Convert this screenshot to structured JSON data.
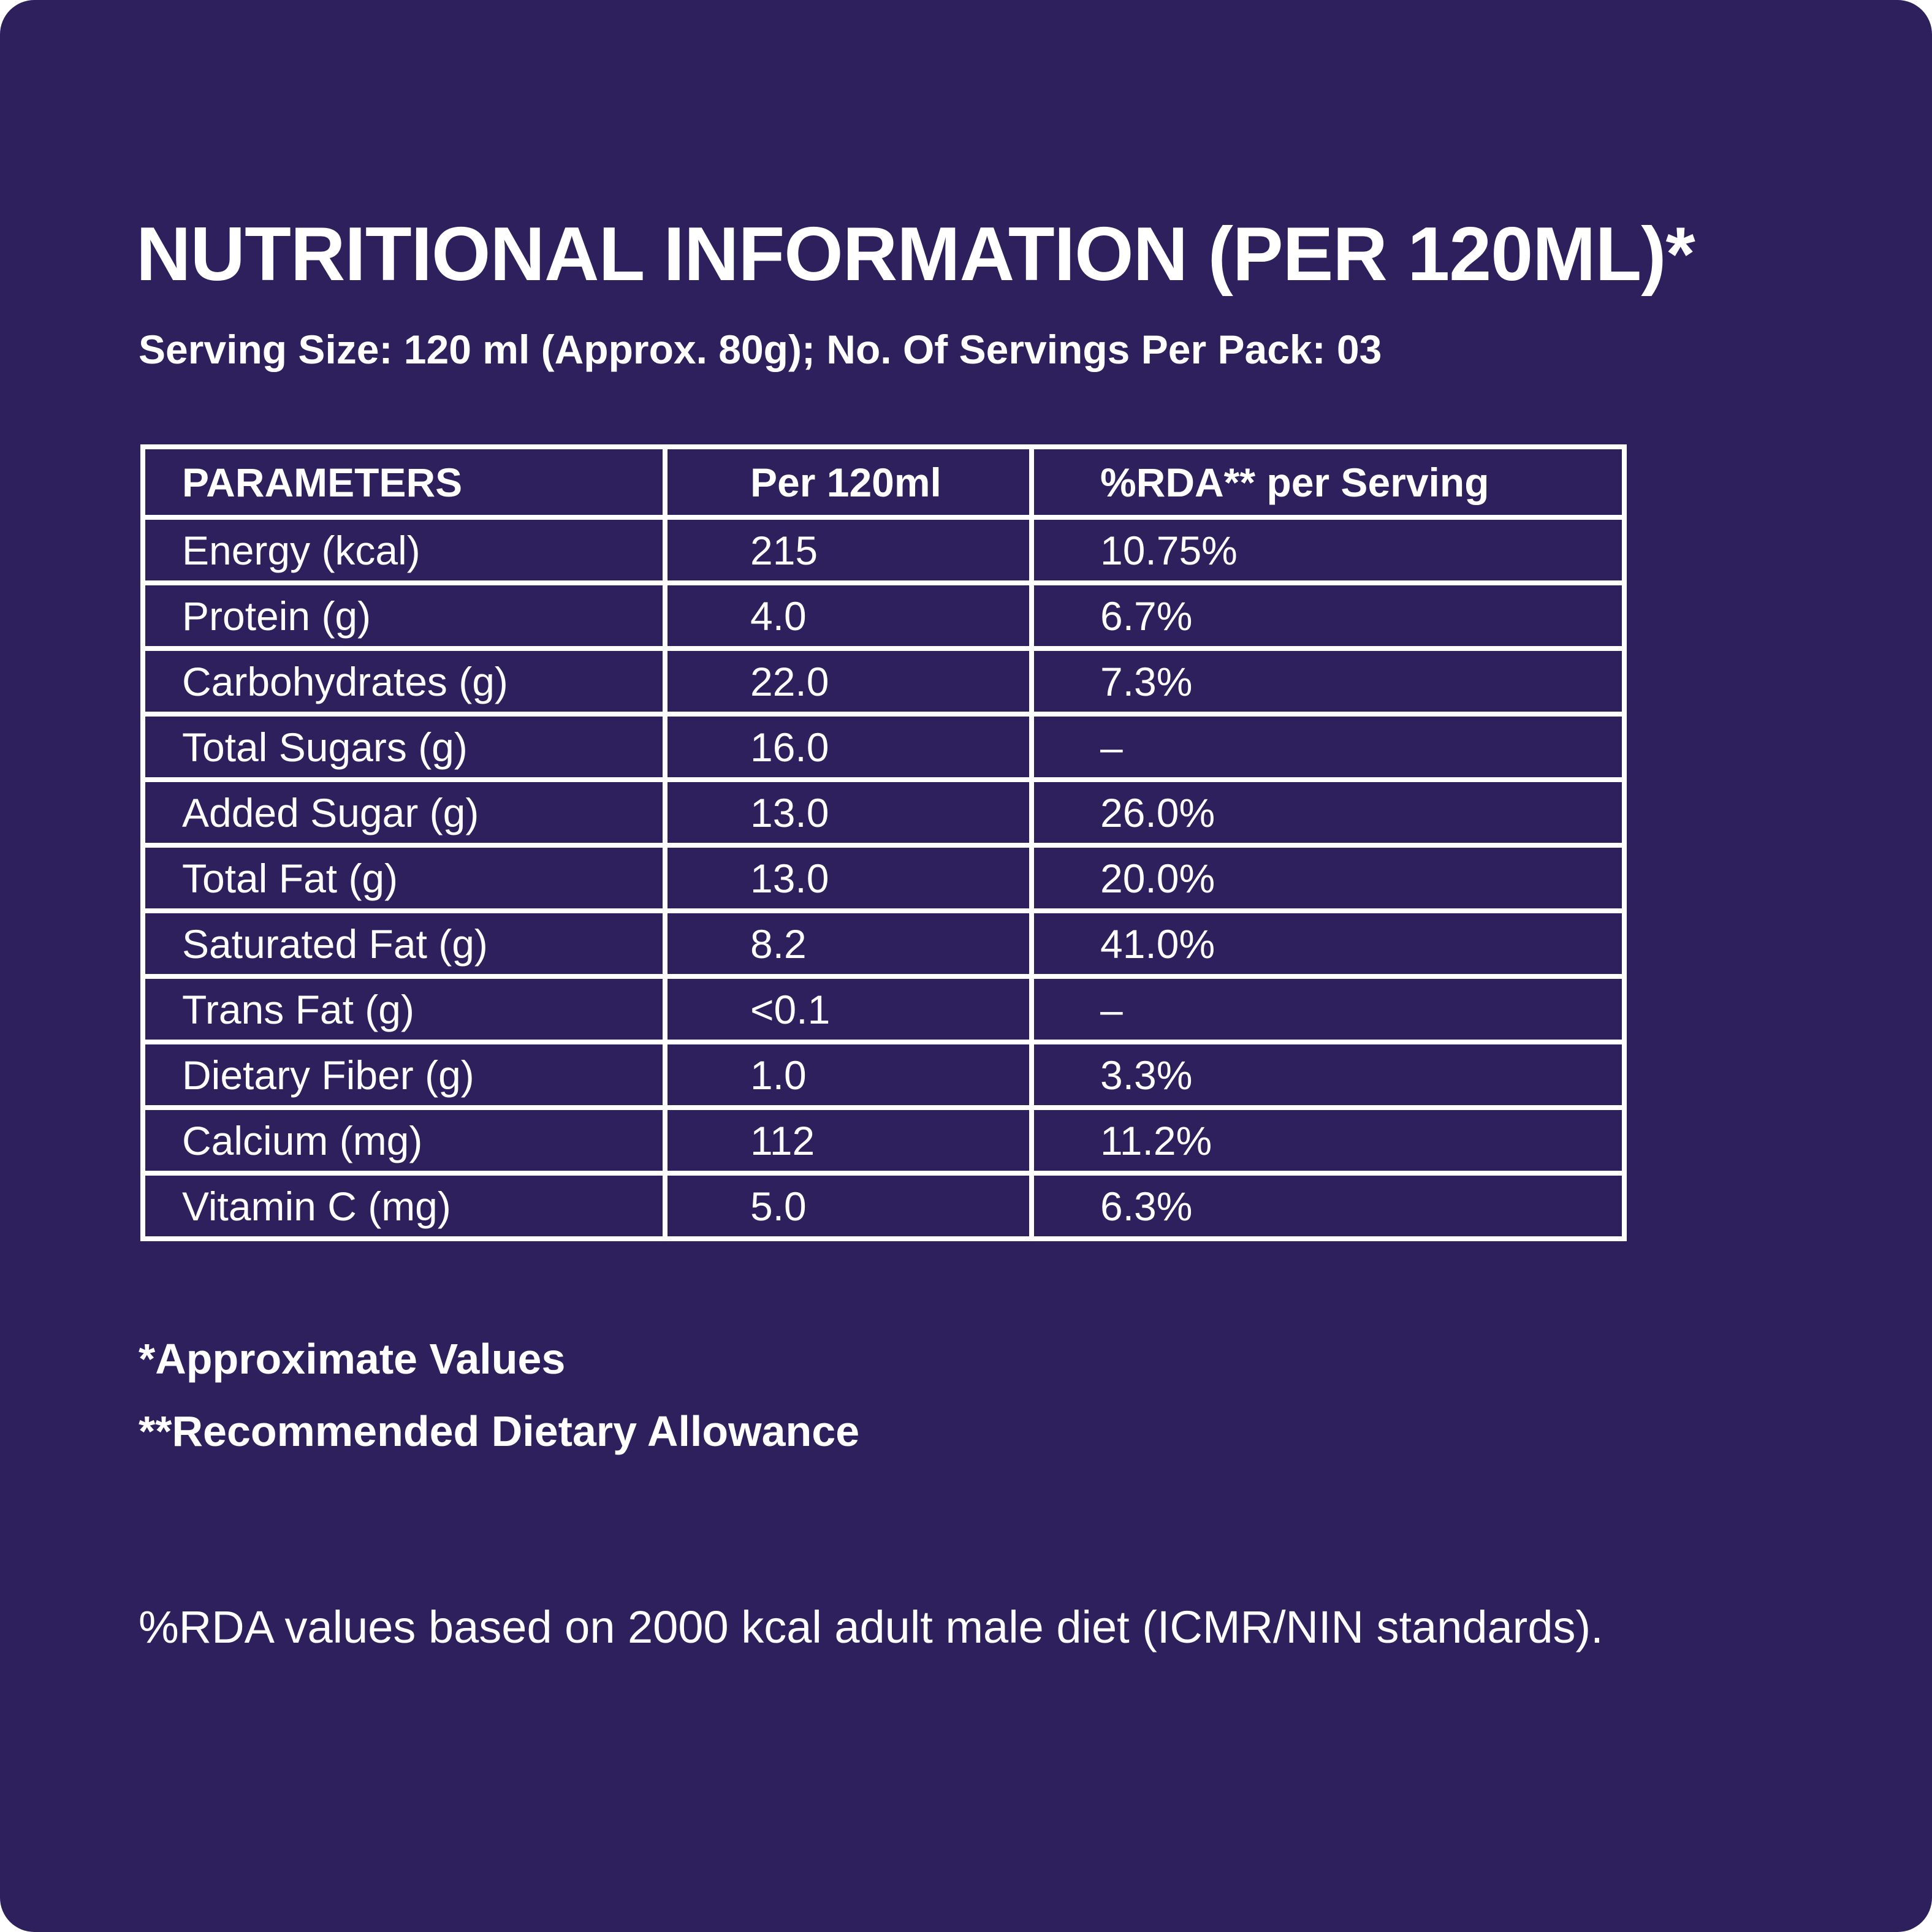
{
  "title": "NUTRITIONAL INFORMATION (PER 120ML)*",
  "serving_info": "Serving Size: 120 ml (Approx. 80g); No. Of Servings Per Pack: 03",
  "table": {
    "headers": [
      "PARAMETERS",
      "Per 120ml",
      "%RDA** per Serving"
    ],
    "rows": [
      [
        "Energy (kcal)",
        "215",
        "10.75%"
      ],
      [
        "Protein (g)",
        "4.0",
        "6.7%"
      ],
      [
        "Carbohydrates (g)",
        "22.0",
        "7.3%"
      ],
      [
        "Total Sugars (g)",
        "16.0",
        "–"
      ],
      [
        "Added Sugar (g)",
        "13.0",
        "26.0%"
      ],
      [
        "Total Fat (g)",
        "13.0",
        "20.0%"
      ],
      [
        "Saturated Fat (g)",
        "8.2",
        "41.0%"
      ],
      [
        "Trans Fat (g)",
        "<0.1",
        "–"
      ],
      [
        "Dietary Fiber (g)",
        "1.0",
        "3.3%"
      ],
      [
        "Calcium (mg)",
        "112",
        "11.2%"
      ],
      [
        "Vitamin C (mg)",
        "5.0",
        "6.3%"
      ]
    ]
  },
  "footnotes": {
    "approximate": "*Approximate Values",
    "rda": "**Recommended Dietary Allowance"
  },
  "basis_note": "%RDA values based on 2000 kcal adult male diet (ICMR/NIN standards).",
  "colors": {
    "background": "#2d205c",
    "text": "#ffffff"
  }
}
